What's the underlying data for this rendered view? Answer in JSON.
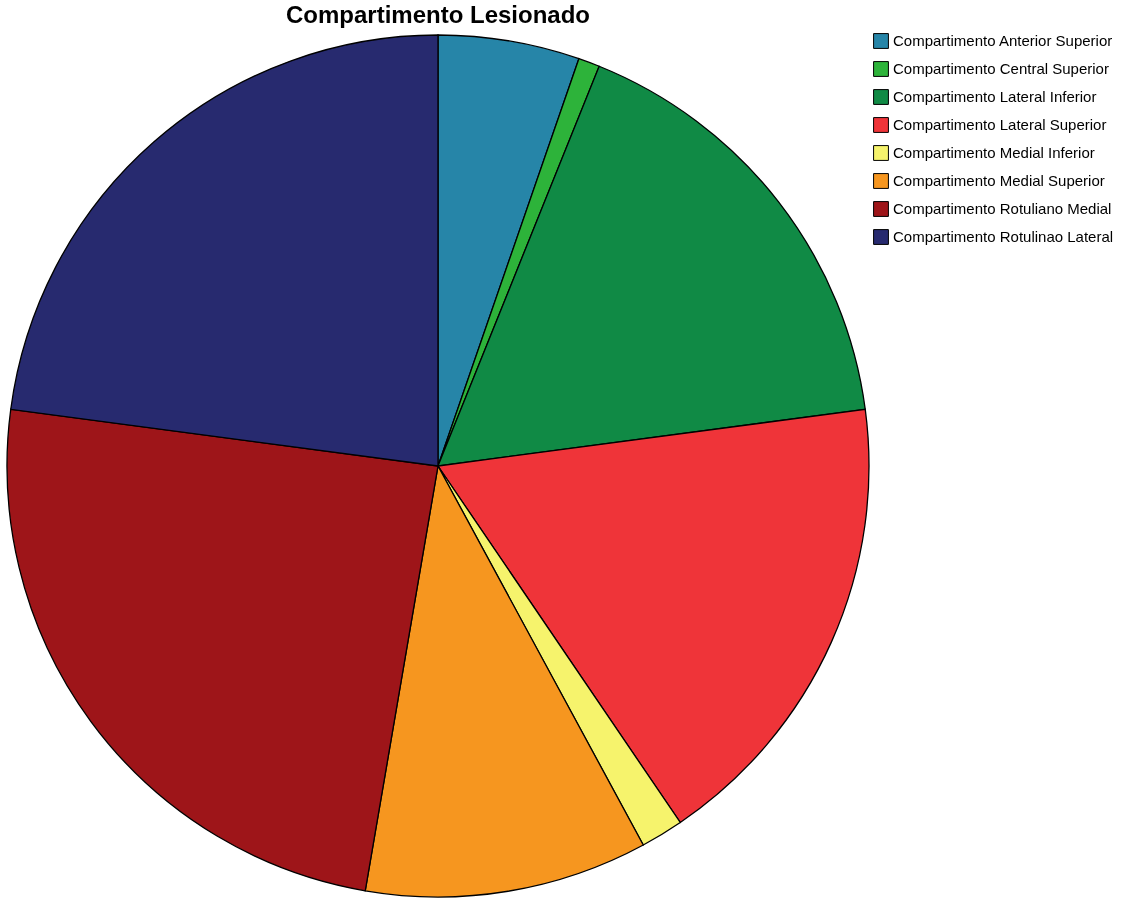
{
  "chart_data": {
    "type": "pie",
    "title": "Compartimento Lesionado",
    "categories": [
      "Compartimento Anterior Superior",
      "Compartimento Central Superior",
      "Compartimento Lateral Inferior",
      "Compartimento Lateral Superior",
      "Compartimento Medial Inferior",
      "Compartimento Medial Superior",
      "Compartimento Rotuliano Medial",
      "Compartimento Rotulinao Lateral"
    ],
    "values": [
      5.3,
      0.8,
      16.8,
      17.6,
      1.6,
      10.6,
      24.4,
      22.9
    ],
    "colors": [
      "#2685a8",
      "#2db33a",
      "#108a45",
      "#ef3439",
      "#f6f36c",
      "#f6961f",
      "#9e1519",
      "#272a6f"
    ],
    "legend": "top right"
  }
}
